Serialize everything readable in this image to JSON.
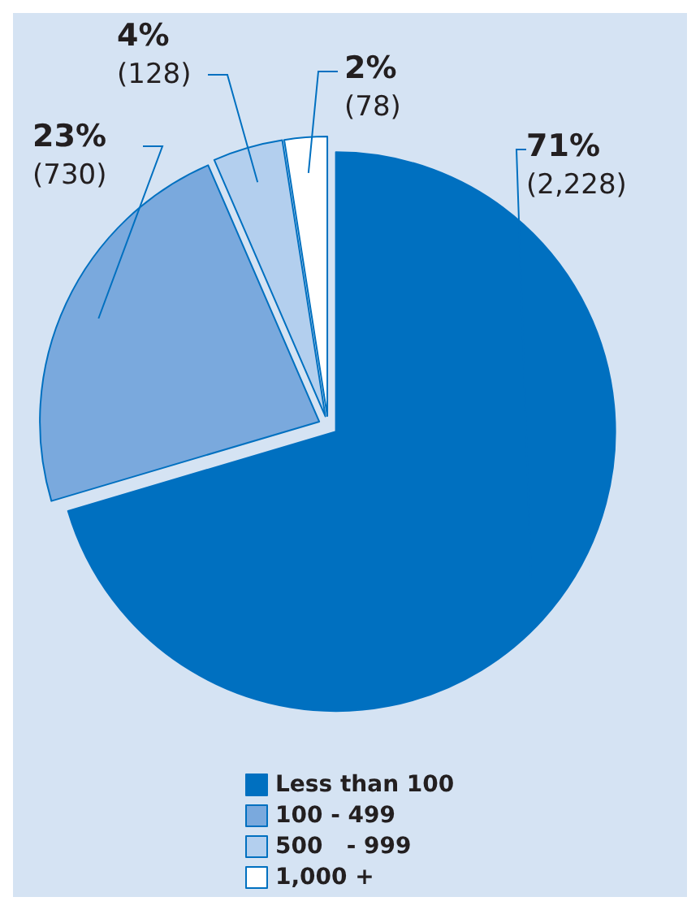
{
  "chart_data": {
    "type": "pie",
    "categories": [
      "Less than 100",
      "100 - 499",
      "500   - 999",
      "1,000 +"
    ],
    "values": [
      2228,
      730,
      128,
      78
    ],
    "colors": [
      "#0070c0",
      "#7aa9dd",
      "#b3cfee",
      "#ffffff"
    ],
    "value_labels": [
      "71%\n(2,228)",
      "23%\n(730)",
      "4%\n(128)",
      "2%\n(78)"
    ],
    "legend": "bottom"
  }
}
